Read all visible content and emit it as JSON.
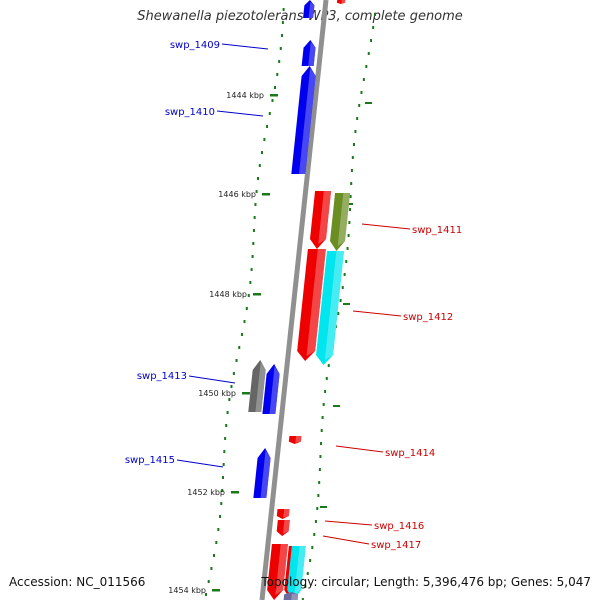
{
  "title": "Shewanella piezotolerans WP3, complete genome",
  "footer": {
    "accession": "Accession: NC_011566",
    "summary": "Topology: circular; Length: 5,396,476 bp; Genes: 5,047"
  },
  "colors": {
    "forward_label": "#0000cc",
    "reverse_label": "#cc0000",
    "backbone": "#909090",
    "tick": "#1a7a1a",
    "gc_dot": "#1a7a1a"
  },
  "kbp_ticks": [
    "1444 kbp",
    "1446 kbp",
    "1448 kbp",
    "1450 kbp",
    "1452 kbp",
    "1454 kbp"
  ],
  "genes": [
    {
      "label": "swp_1409",
      "strand": "forward",
      "color": "#0000ee"
    },
    {
      "label": "swp_1410",
      "strand": "forward",
      "color": "#0000ee"
    },
    {
      "label": "swp_1411",
      "strand": "reverse",
      "color": "#6b8e23"
    },
    {
      "label": "swp_1412",
      "strand": "reverse",
      "color": "#00e5ee"
    },
    {
      "label": "swp_1413",
      "strand": "forward",
      "color": "#666666"
    },
    {
      "label": "swp_1414",
      "strand": "reverse",
      "color": "#ee0000"
    },
    {
      "label": "swp_1415",
      "strand": "forward",
      "color": "#0000ee"
    },
    {
      "label": "swp_1416",
      "strand": "reverse",
      "color": "#ee0000"
    },
    {
      "label": "swp_1417",
      "strand": "reverse",
      "color": "#ee0000"
    }
  ],
  "unlabeled_genes": [
    {
      "color": "#0000ee"
    },
    {
      "color": "#ee0000"
    },
    {
      "color": "#ee0000"
    },
    {
      "color": "#ee0000"
    },
    {
      "color": "#ee0000"
    },
    {
      "color": "#0000ee"
    },
    {
      "color": "#ee0000"
    },
    {
      "color": "#00e5ee"
    },
    {
      "color": "#6b6b9e"
    }
  ]
}
